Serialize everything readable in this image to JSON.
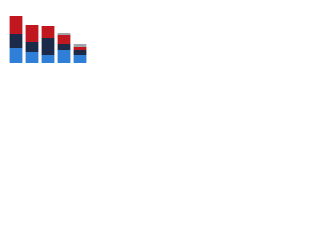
{
  "chart_data": {
    "type": "stacked-bar",
    "categories": [
      null,
      null,
      null,
      null,
      null
    ],
    "series": [
      {
        "color": "#2f7ed8",
        "values": [
          15,
          11,
          8,
          13,
          8
        ]
      },
      {
        "color": "#1c2b4a",
        "values": [
          14,
          10,
          17,
          6,
          5
        ]
      },
      {
        "color": "#c0181e",
        "values": [
          18,
          17,
          12,
          9,
          3
        ]
      },
      {
        "color": "#a0a4a8",
        "values": [
          0,
          0,
          0,
          2,
          3
        ]
      }
    ],
    "ylim": [
      0,
      50
    ]
  }
}
